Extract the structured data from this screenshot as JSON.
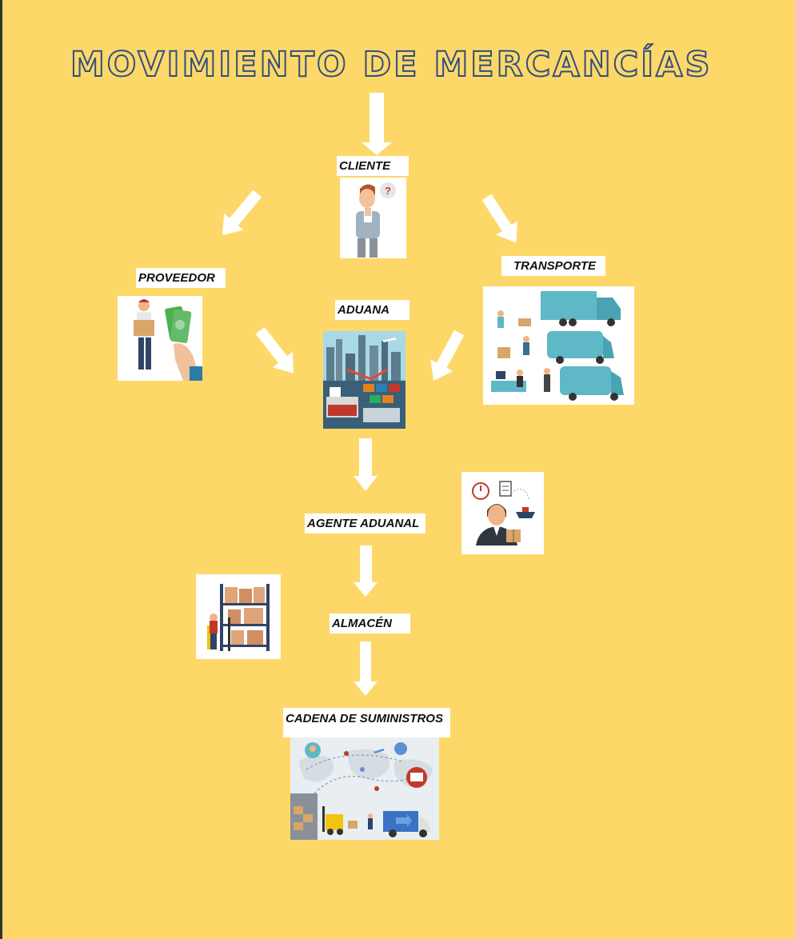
{
  "diagram": {
    "title": "MOVIMIENTO DE MERCANCÍAS",
    "nodes": {
      "cliente": "CLIENTE",
      "proveedor": "PROVEEDOR",
      "transporte": "TRANSPORTE",
      "aduana": "ADUANA",
      "agente_aduanal": "AGENTE ADUANAL",
      "almacen": "ALMACÉN",
      "cadena": "CADENA DE SUMINISTROS"
    },
    "icons": {
      "cliente": "thinking-person-icon",
      "proveedor": "delivery-person-money-icon",
      "transporte": "trucks-logistics-icon",
      "aduana": "port-ship-containers-icon",
      "agente_aduanal": "customs-agent-icon",
      "almacen": "warehouse-forklift-icon",
      "cadena": "world-map-supply-chain-icon"
    },
    "colors": {
      "background": "#fdd868",
      "title_outline": "#2f4f80",
      "arrow": "#ffffff",
      "truck": "#5fb8c6"
    }
  }
}
